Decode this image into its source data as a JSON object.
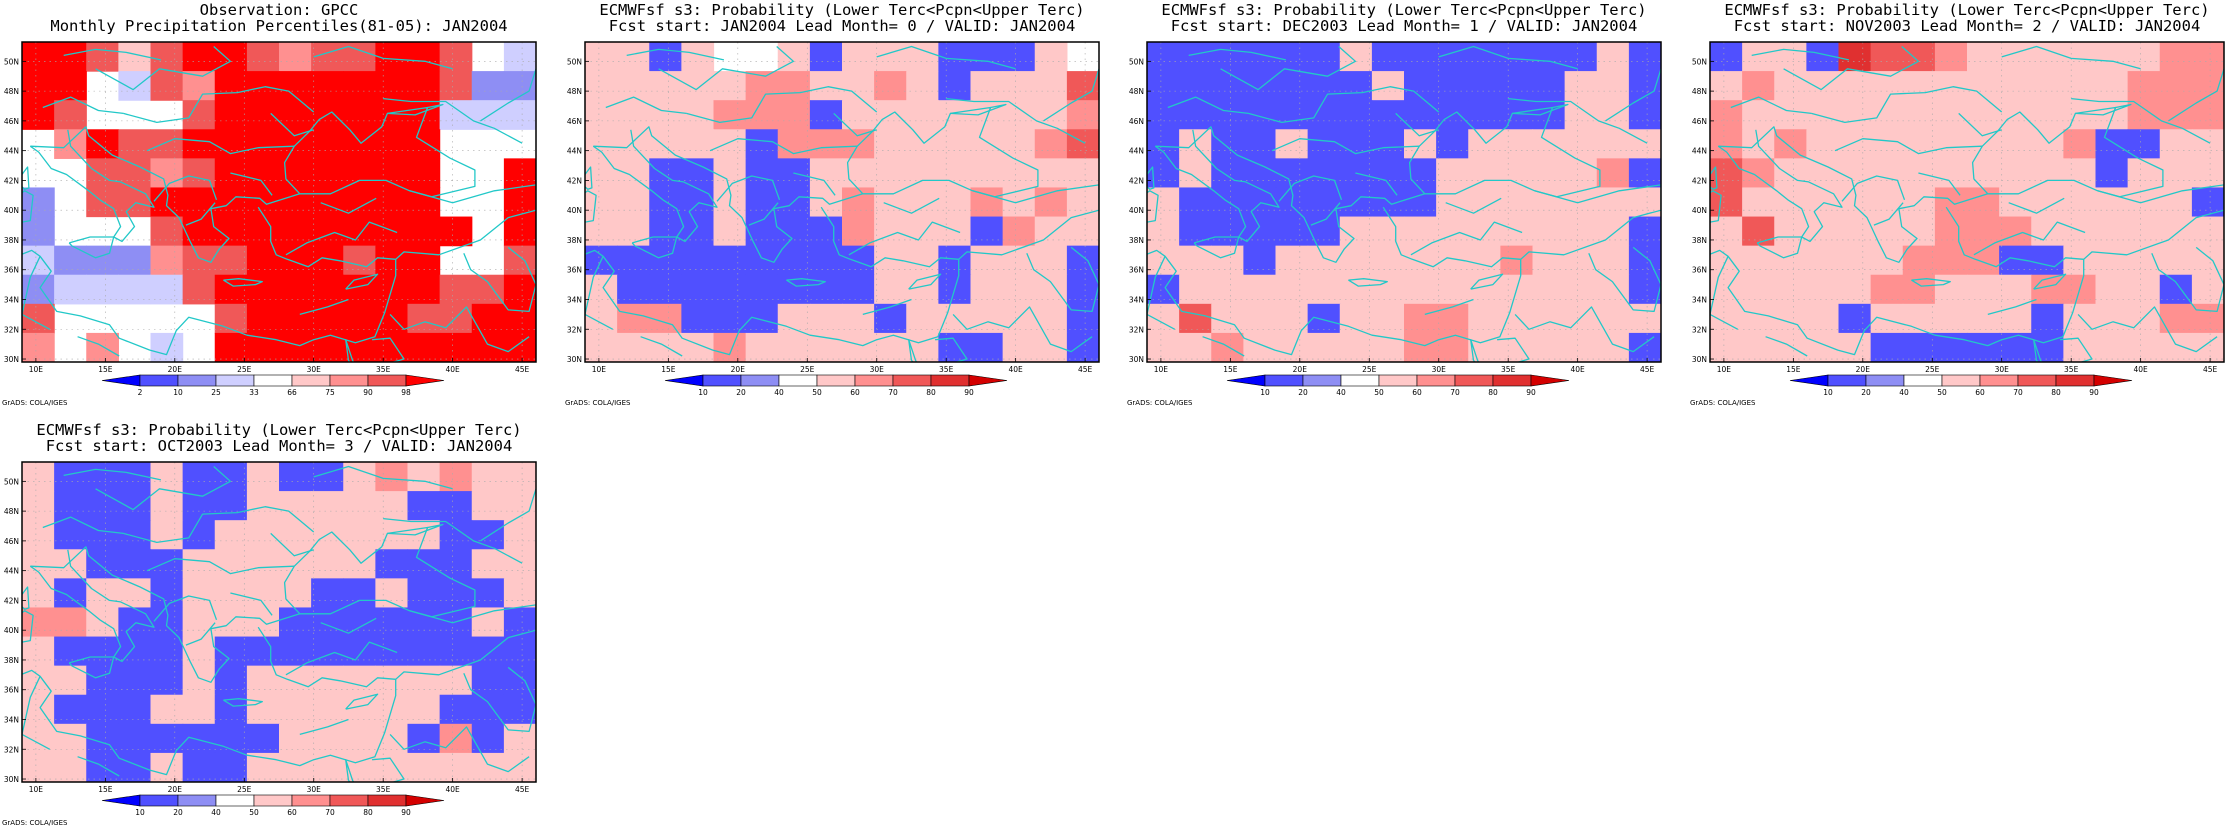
{
  "credit_text": "GrADS: COLA/IGES",
  "lon_ticks": [
    "10E",
    "15E",
    "20E",
    "25E",
    "30E",
    "35E",
    "40E",
    "45E"
  ],
  "lat_ticks": [
    "30N",
    "32N",
    "34N",
    "36N",
    "38N",
    "40N",
    "42N",
    "44N",
    "46N",
    "48N",
    "50N"
  ],
  "colors": {
    "coast": "#22c8c8",
    "frame": "#000000",
    "grid": "#aaaaaa"
  },
  "obs_scale": {
    "labels": [
      "2",
      "10",
      "25",
      "33",
      "66",
      "75",
      "90",
      "98"
    ],
    "colors": [
      "#0000ff",
      "#5050ff",
      "#8e8ef4",
      "#cfcfff",
      "#ffffff",
      "#ffc8c8",
      "#ff9090",
      "#f05858",
      "#ff0000"
    ]
  },
  "prob_scale": {
    "labels": [
      "10",
      "20",
      "40",
      "50",
      "60",
      "70",
      "80",
      "90"
    ],
    "colors": [
      "#0000ff",
      "#5050ff",
      "#8e8ef4",
      "#ffffff",
      "#ffc8c8",
      "#ff9090",
      "#f05858",
      "#e03030",
      "#d40000"
    ]
  },
  "panels": [
    {
      "title1": "Observation: GPCC",
      "title2": "Monthly Precipitation Percentiles(81-05): JAN2004",
      "scale": "obs",
      "grid": [
        "8875788767788743",
        "8843768888888722",
        "8744478888888333",
        "4687788888888444",
        "4477678888888448",
        "2477888888888448",
        "2444788888888848",
        "3222677888788447",
        "2333378888888778",
        "7444447888887788",
        "6464348888888888"
      ]
    },
    {
      "title1": "ECMWFsf s3: Probability (Lower Terc<Pcpn<Upper Terc)",
      "title2": "Fcst start: JAN2004   Lead Month= 0 / VALID: JAN2004",
      "scale": "prob",
      "grid": [
        "4414334144411143",
        "4444455445414446",
        "4444555144444445",
        "4444415554444456",
        "4411411444444444",
        "4411411454445454",
        "4411411154441544",
        "1111111114414441",
        "4111111114414441",
        "4551114441444441",
        "4444544444411441"
      ]
    },
    {
      "title1": "ECMWFsf s3: Probability (Lower Terc<Pcpn<Upper Terc)",
      "title2": "Fcst start: DEC2003   Lead Month= 1 / VALID: JAN2004",
      "scale": "prob",
      "grid": [
        "1111114111111141",
        "1111111411111441",
        "1111111111111441",
        "1411411141444444",
        "1411111114444451",
        "4111111114444444",
        "4111114444444441",
        "4441444444454441",
        "1444444444444441",
        "4644414455444444",
        "4454444455444441"
      ]
    },
    {
      "title1": "ECMWFsf s3: Probability (Lower Terc<Pcpn<Upper Terc)",
      "title2": "Fcst start: NOV2003   Lead Month= 2 / VALID: JAN2004",
      "scale": "prob",
      "grid": [
        "1441766544444455",
        "4544444444444555",
        "5444444444444555",
        "5454444444451144",
        "6544444444441444",
        "6444444554444441",
        "4644444555444444",
        "4444445551144444",
        "4444455444554414",
        "4444144444144455",
        "4444411111144444"
      ]
    },
    {
      "title1": "ECMWFsf s3: Probability (Lower Terc<Pcpn<Upper Terc)",
      "title2": "Fcst start: OCT2003   Lead Month= 3 / VALID: JAN2004",
      "scale": "prob",
      "grid": [
        "4111411411454544",
        "4111411444441144",
        "4111414444444114",
        "4411144444411144",
        "4144144441141114",
        "5541144411111141",
        "4111141111111111",
        "4411141444444411",
        "4111441444444111",
        "4411111144441514",
        "4411411444444444"
      ]
    }
  ]
}
